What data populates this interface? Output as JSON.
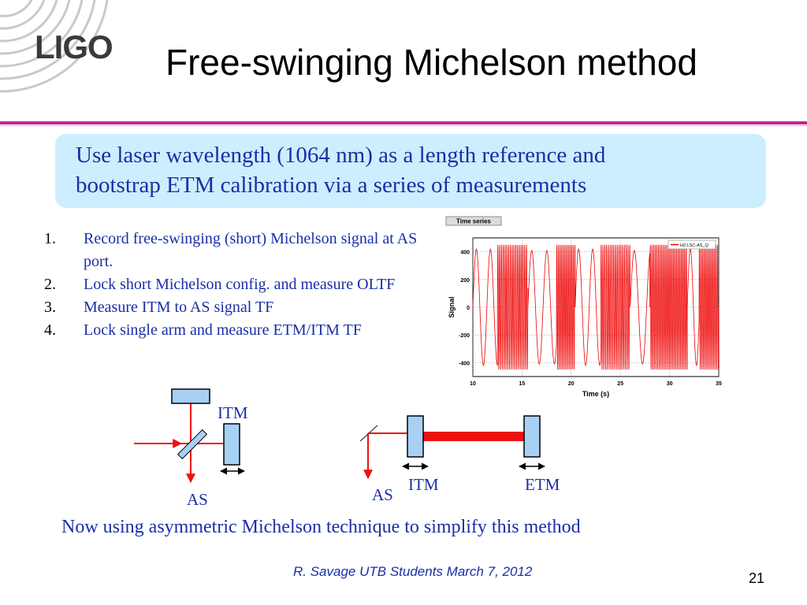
{
  "logo": {
    "text": "LIGO"
  },
  "title": "Free-swinging Michelson method",
  "callout": {
    "line1": "Use laser wavelength (1064 nm) as a length reference and",
    "line2": "bootstrap ETM calibration via a series of measurements"
  },
  "steps": [
    {
      "num": "1.",
      "text": "Record free-swinging (short) Michelson signal at AS port."
    },
    {
      "num": "2.",
      "text": "Lock short Michelson  config. and measure OLTF"
    },
    {
      "num": "3.",
      "text": "Measure ITM to AS signal TF"
    },
    {
      "num": "4.",
      "text": "Lock single arm and measure ETM/ITM TF"
    }
  ],
  "chart_data": {
    "type": "line",
    "title": "Time series",
    "xlabel": "Time (s)",
    "ylabel": "Signal",
    "xlim": [
      10,
      35
    ],
    "ylim": [
      -500,
      500
    ],
    "xticks": [
      10,
      15,
      20,
      25,
      30,
      35
    ],
    "yticks": [
      400,
      200,
      0,
      -200,
      -400
    ],
    "grid": true,
    "legend_position": "top-right",
    "series": [
      {
        "name": "H2:LSC-AS_Q",
        "color": "#ee0000",
        "segments": [
          {
            "x": [
              10.0,
              12.5
            ],
            "freq": 0.7,
            "amp": 420
          },
          {
            "x": [
              12.5,
              15.6
            ],
            "freq": 5.5,
            "amp": 450
          },
          {
            "x": [
              15.6,
              18.5
            ],
            "freq": 0.65,
            "amp": 410
          },
          {
            "x": [
              18.5,
              20.4
            ],
            "freq": 6.0,
            "amp": 450
          },
          {
            "x": [
              20.4,
              23.0
            ],
            "freq": 0.7,
            "amp": 420
          },
          {
            "x": [
              23.0,
              26.0
            ],
            "freq": 5.5,
            "amp": 450
          },
          {
            "x": [
              26.0,
              28.0
            ],
            "freq": 0.6,
            "amp": 410
          },
          {
            "x": [
              28.0,
              31.8
            ],
            "freq": 6.0,
            "amp": 450
          },
          {
            "x": [
              31.8,
              33.0
            ],
            "freq": 0.8,
            "amp": 420
          },
          {
            "x": [
              33.0,
              35.0
            ],
            "freq": 6.0,
            "amp": 450
          }
        ]
      }
    ]
  },
  "diagram1": {
    "itm_label": "ITM",
    "as_label": "AS"
  },
  "diagram2": {
    "itm_label": "ITM",
    "etm_label": "ETM",
    "as_label": "AS"
  },
  "colors": {
    "accent_rule": "#c8239a",
    "callout_bg": "#cdeefe",
    "text_blue": "#1a2ea8",
    "mirror_fill": "#a8d0f5",
    "beam_red": "#ee1111"
  },
  "footer": {
    "note": "Now using asymmetric Michelson technique to simplify this method",
    "credit": "R. Savage   UTB Students March 7, 2012",
    "page_number": "21"
  }
}
